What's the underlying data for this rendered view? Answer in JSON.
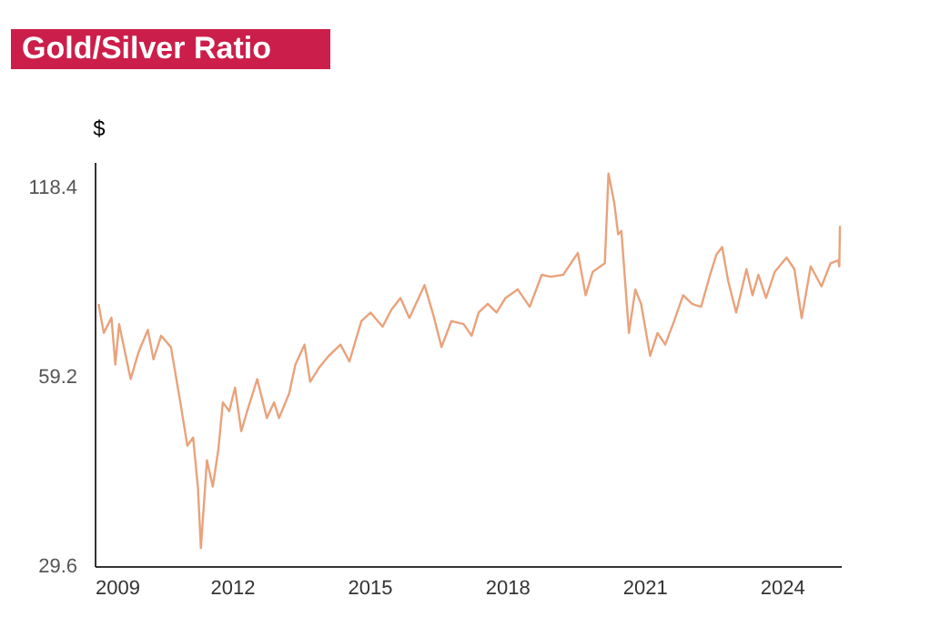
{
  "chart_data": {
    "type": "line",
    "title": "Gold/Silver Ratio",
    "ylabel": "$",
    "x": [
      "2009-02-01",
      "2009-03-15",
      "2009-05-15",
      "2009-06-15",
      "2009-07-15",
      "2009-10-15",
      "2009-12-15",
      "2010-03-01",
      "2010-04-15",
      "2010-06-15",
      "2010-09-01",
      "2010-11-15",
      "2011-01-10",
      "2011-02-25",
      "2011-04-05",
      "2011-04-28",
      "2011-06-15",
      "2011-08-01",
      "2011-09-15",
      "2011-10-20",
      "2011-12-10",
      "2012-01-25",
      "2012-03-15",
      "2012-05-01",
      "2012-07-20",
      "2012-10-05",
      "2012-12-01",
      "2013-01-10",
      "2013-04-01",
      "2013-05-20",
      "2013-08-01",
      "2013-09-15",
      "2013-11-25",
      "2014-02-10",
      "2014-05-15",
      "2014-07-25",
      "2014-10-28",
      "2015-01-10",
      "2015-04-15",
      "2015-06-25",
      "2015-09-05",
      "2015-11-15",
      "2016-03-15",
      "2016-05-25",
      "2016-07-28",
      "2016-10-15",
      "2017-01-20",
      "2017-03-25",
      "2017-05-20",
      "2017-08-01",
      "2017-10-10",
      "2017-12-20",
      "2018-03-28",
      "2018-07-01",
      "2018-10-05",
      "2018-12-15",
      "2019-03-25",
      "2019-07-20",
      "2019-09-20",
      "2019-11-15",
      "2020-02-20",
      "2020-03-20",
      "2020-05-05",
      "2020-06-05",
      "2020-07-01",
      "2020-08-30",
      "2020-10-20",
      "2020-12-05",
      "2021-02-15",
      "2021-04-15",
      "2021-06-15",
      "2021-08-25",
      "2021-11-05",
      "2022-01-15",
      "2022-03-28",
      "2022-06-08",
      "2022-07-28",
      "2022-09-12",
      "2022-10-30",
      "2023-01-02",
      "2023-03-25",
      "2023-05-12",
      "2023-06-28",
      "2023-08-28",
      "2023-11-05",
      "2024-02-08",
      "2024-04-10",
      "2024-06-07",
      "2024-08-18",
      "2024-11-12",
      "2025-01-23",
      "2025-03-25",
      "2025-04-03",
      "2025-04-08"
    ],
    "series": [
      {
        "color": "#e9a27b",
        "values": [
          77.3,
          69.5,
          73.5,
          61.9,
          71.8,
          58.7,
          64.6,
          70.3,
          63.1,
          68.8,
          66,
          53.9,
          46,
          47.4,
          39.3,
          31.6,
          43.6,
          39.6,
          45.5,
          53.9,
          52.2,
          56.9,
          48.5,
          52.2,
          58.7,
          50.9,
          53.9,
          50.9,
          55.7,
          61.9,
          66.6,
          58.1,
          61.2,
          63.9,
          66.6,
          62.6,
          72.6,
          74.9,
          71.1,
          75.7,
          79,
          73.4,
          82.8,
          74.1,
          66,
          72.6,
          71.8,
          68.8,
          74.9,
          77.3,
          74.9,
          79,
          81.5,
          76.5,
          86,
          85.4,
          86,
          93.2,
          79.8,
          86.9,
          89.7,
          124.6,
          112,
          99.7,
          101,
          69.5,
          81.5,
          77.3,
          63.9,
          69.5,
          66.6,
          72.6,
          79.8,
          77.3,
          76.5,
          86,
          92.6,
          95.2,
          84.1,
          74.9,
          87.8,
          79.8,
          86,
          79,
          86.9,
          91.6,
          87.8,
          73.4,
          88.7,
          82.4,
          89.7,
          90.7,
          88.7,
          102.9
        ]
      }
    ],
    "xlim": [
      "2009-01-01",
      "2025-04-15"
    ],
    "xticks": [
      "2009",
      "2012",
      "2015",
      "2018",
      "2021",
      "2024"
    ],
    "ylim": [
      29.6,
      130
    ],
    "yticks": [
      29.6,
      59.2,
      118.4
    ],
    "log": "y",
    "grid": false
  }
}
